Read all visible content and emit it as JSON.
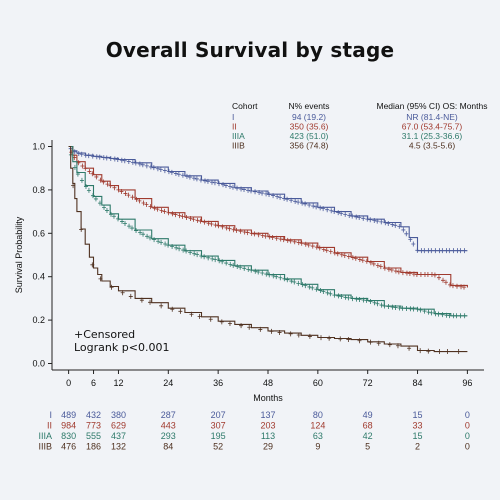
{
  "title": "Overall Survival by stage",
  "legend_header": {
    "cohort": "Cohort",
    "events": "N% events",
    "median": "Median (95% CI) OS: Months"
  },
  "annotations": {
    "censored": "+Censored",
    "logrank": "Logrank p<0.001"
  },
  "chart_data": {
    "type": "line",
    "title": "Overall Survival by stage",
    "xlabel": "Months",
    "ylabel": "Survival Probability",
    "xlim": [
      -4,
      100
    ],
    "ylim": [
      -0.03,
      1.03
    ],
    "xticks": [
      0,
      6,
      12,
      24,
      36,
      48,
      60,
      72,
      84,
      96
    ],
    "yticks": [
      "0.0",
      "0.2",
      "0.4",
      "0.6",
      "0.8",
      "1.0"
    ],
    "legend_position": "top-right",
    "series": [
      {
        "name": "I",
        "color": "#4a5a9a",
        "events": "94 (19.2)",
        "median": "NR (81.4-NE)",
        "x": [
          0,
          1,
          2,
          4,
          6,
          8,
          10,
          12,
          16,
          20,
          24,
          28,
          32,
          36,
          40,
          44,
          48,
          52,
          56,
          60,
          64,
          68,
          72,
          76,
          80,
          82,
          84,
          88,
          92,
          96
        ],
        "y": [
          1.0,
          0.98,
          0.97,
          0.96,
          0.955,
          0.95,
          0.945,
          0.94,
          0.925,
          0.905,
          0.885,
          0.865,
          0.845,
          0.83,
          0.81,
          0.795,
          0.78,
          0.76,
          0.74,
          0.72,
          0.7,
          0.68,
          0.665,
          0.65,
          0.63,
          0.58,
          0.52,
          0.52,
          0.52,
          0.52
        ],
        "at_risk": [
          "489",
          "432",
          "380",
          "287",
          "207",
          "137",
          "80",
          "49",
          "15",
          "0"
        ]
      },
      {
        "name": "II",
        "color": "#a03a2e",
        "events": "350 (35.6)",
        "median": "67.0 (53.4-75.7)",
        "x": [
          0,
          1,
          2,
          4,
          6,
          8,
          10,
          12,
          16,
          20,
          24,
          28,
          32,
          36,
          40,
          44,
          48,
          52,
          56,
          60,
          64,
          68,
          72,
          76,
          80,
          84,
          88,
          92,
          96
        ],
        "y": [
          1.0,
          0.96,
          0.93,
          0.9,
          0.87,
          0.84,
          0.82,
          0.8,
          0.76,
          0.72,
          0.695,
          0.675,
          0.655,
          0.635,
          0.615,
          0.6,
          0.585,
          0.57,
          0.555,
          0.535,
          0.51,
          0.49,
          0.47,
          0.44,
          0.42,
          0.41,
          0.41,
          0.36,
          0.35
        ],
        "at_risk": [
          "984",
          "773",
          "629",
          "443",
          "307",
          "203",
          "124",
          "68",
          "33",
          "0"
        ]
      },
      {
        "name": "IIIA",
        "color": "#2e7a6a",
        "events": "423 (51.0)",
        "median": "31.1 (25.3-36.6)",
        "x": [
          0,
          1,
          2,
          4,
          6,
          8,
          10,
          12,
          16,
          20,
          24,
          28,
          32,
          36,
          40,
          44,
          48,
          52,
          56,
          60,
          64,
          68,
          72,
          76,
          80,
          84,
          88,
          92,
          96
        ],
        "y": [
          1.0,
          0.93,
          0.88,
          0.82,
          0.77,
          0.73,
          0.69,
          0.665,
          0.615,
          0.575,
          0.545,
          0.52,
          0.495,
          0.475,
          0.45,
          0.43,
          0.41,
          0.39,
          0.365,
          0.34,
          0.315,
          0.3,
          0.29,
          0.265,
          0.255,
          0.25,
          0.23,
          0.22,
          0.22
        ],
        "at_risk": [
          "830",
          "555",
          "437",
          "293",
          "195",
          "113",
          "63",
          "42",
          "15",
          "0"
        ]
      },
      {
        "name": "IIIB",
        "color": "#4f3120",
        "events": "356 (74.8)",
        "median": "4.5 (3.5-5.6)",
        "x": [
          0,
          0.5,
          1,
          1.5,
          2,
          3,
          4,
          5,
          6,
          7,
          8,
          10,
          12,
          16,
          20,
          24,
          28,
          32,
          36,
          40,
          44,
          48,
          52,
          56,
          60,
          64,
          68,
          72,
          76,
          80,
          84,
          88,
          92,
          96
        ],
        "y": [
          1.0,
          0.9,
          0.83,
          0.76,
          0.7,
          0.62,
          0.55,
          0.49,
          0.44,
          0.41,
          0.38,
          0.355,
          0.335,
          0.3,
          0.28,
          0.255,
          0.235,
          0.215,
          0.195,
          0.18,
          0.165,
          0.15,
          0.14,
          0.13,
          0.12,
          0.115,
          0.11,
          0.1,
          0.09,
          0.08,
          0.06,
          0.055,
          0.055,
          0.055
        ],
        "at_risk": [
          "476",
          "186",
          "132",
          "84",
          "52",
          "29",
          "9",
          "5",
          "2",
          "0"
        ]
      }
    ]
  }
}
